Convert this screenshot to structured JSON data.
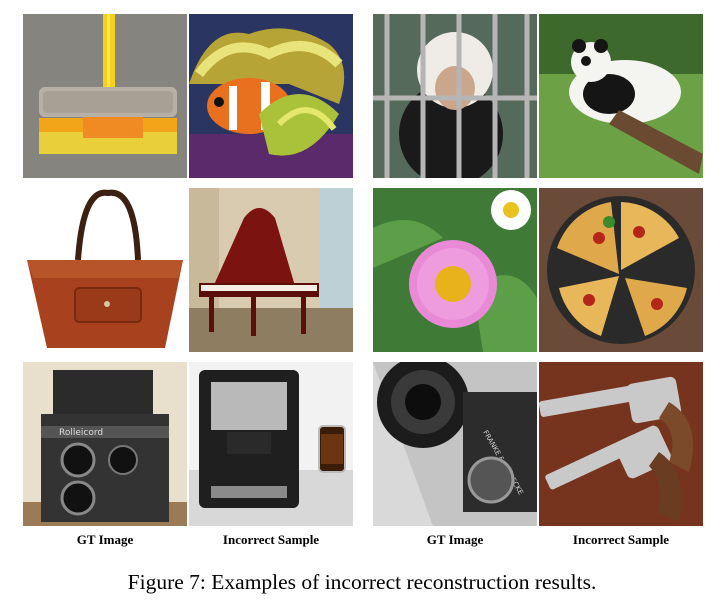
{
  "figure": {
    "caption": "Figure 7: Examples of incorrect reconstruction results.",
    "column_labels": {
      "gt": "GT Image",
      "incorrect": "Incorrect Sample"
    },
    "pairs": [
      {
        "gt": "broom",
        "incorrect": "clownfish-in-anemone"
      },
      {
        "gt": "handbag",
        "incorrect": "grand-piano"
      },
      {
        "gt": "twin-lens-camera",
        "incorrect": "espresso-machine"
      },
      {
        "gt": "monkey-behind-bars",
        "incorrect": "panda-on-log"
      },
      {
        "gt": "pink-daisy",
        "incorrect": "pizza"
      },
      {
        "gt": "camera-lens",
        "incorrect": "revolvers"
      }
    ],
    "image_text": {
      "camera_brand": "Rolleicord",
      "lens_brand": "FRANKE & HEIDECKE"
    }
  }
}
